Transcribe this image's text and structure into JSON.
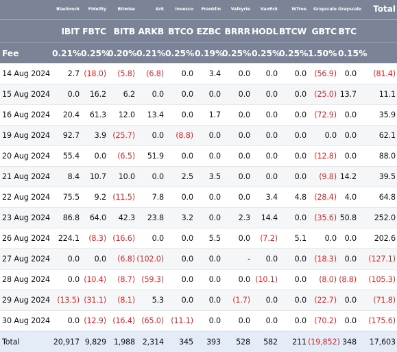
{
  "colors": {
    "header_bg": "#7b8497",
    "header_text": "#ffffff",
    "negative": "#d62a2a",
    "total_row_bg": "#e4edf7"
  },
  "table": {
    "total_label": "Total",
    "fee_label": "Fee",
    "issuers": [
      "Blackrock",
      "Fidelity",
      "Bitwise",
      "Ark",
      "Invesco",
      "Franklin",
      "Valkyrie",
      "VanEck",
      "WTree",
      "Grayscale",
      "Grayscale"
    ],
    "tickers": [
      "IBIT",
      "FBTC",
      "BITB",
      "ARKB",
      "BTCO",
      "EZBC",
      "BRRR",
      "HODL",
      "BTCW",
      "GBTC",
      "BTC"
    ],
    "fees": [
      "0.21%",
      "0.25%",
      "0.20%",
      "0.21%",
      "0.25%",
      "0.19%",
      "0.25%",
      "0.25%",
      "0.25%",
      "1.50%",
      "0.15%"
    ],
    "rows": [
      {
        "date": "14 Aug 2024",
        "values": [
          "2.7",
          "(18.0)",
          "(5.8)",
          "(6.8)",
          "0.0",
          "3.4",
          "0.0",
          "0.0",
          "0.0",
          "(56.9)",
          "0.0",
          "(81.4)"
        ]
      },
      {
        "date": "15 Aug 2024",
        "values": [
          "0.0",
          "16.2",
          "6.2",
          "0.0",
          "0.0",
          "0.0",
          "0.0",
          "0.0",
          "0.0",
          "(25.0)",
          "13.7",
          "11.1"
        ]
      },
      {
        "date": "16 Aug 2024",
        "values": [
          "20.4",
          "61.3",
          "12.0",
          "13.4",
          "0.0",
          "1.7",
          "0.0",
          "0.0",
          "0.0",
          "(72.9)",
          "0.0",
          "35.9"
        ]
      },
      {
        "date": "19 Aug 2024",
        "values": [
          "92.7",
          "3.9",
          "(25.7)",
          "0.0",
          "(8.8)",
          "0.0",
          "0.0",
          "0.0",
          "0.0",
          "0.0",
          "0.0",
          "62.1"
        ]
      },
      {
        "date": "20 Aug 2024",
        "values": [
          "55.4",
          "0.0",
          "(6.5)",
          "51.9",
          "0.0",
          "0.0",
          "0.0",
          "0.0",
          "0.0",
          "(12.8)",
          "0.0",
          "88.0"
        ]
      },
      {
        "date": "21 Aug 2024",
        "values": [
          "8.4",
          "10.7",
          "10.0",
          "0.0",
          "2.5",
          "3.5",
          "0.0",
          "0.0",
          "0.0",
          "(9.8)",
          "14.2",
          "39.5"
        ]
      },
      {
        "date": "22 Aug 2024",
        "values": [
          "75.5",
          "9.2",
          "(11.5)",
          "7.8",
          "0.0",
          "0.0",
          "0.0",
          "3.4",
          "4.8",
          "(28.4)",
          "4.0",
          "64.8"
        ]
      },
      {
        "date": "23 Aug 2024",
        "values": [
          "86.8",
          "64.0",
          "42.3",
          "23.8",
          "3.2",
          "0.0",
          "2.3",
          "14.4",
          "0.0",
          "(35.6)",
          "50.8",
          "252.0"
        ]
      },
      {
        "date": "26 Aug 2024",
        "values": [
          "224.1",
          "(8.3)",
          "(16.6)",
          "0.0",
          "0.0",
          "5.5",
          "0.0",
          "(7.2)",
          "5.1",
          "0.0",
          "0.0",
          "202.6"
        ]
      },
      {
        "date": "27 Aug 2024",
        "values": [
          "0.0",
          "0.0",
          "(6.8)",
          "(102.0)",
          "0.0",
          "0.0",
          "-",
          "0.0",
          "0.0",
          "(18.3)",
          "0.0",
          "(127.1)"
        ]
      },
      {
        "date": "28 Aug 2024",
        "values": [
          "0.0",
          "(10.4)",
          "(8.7)",
          "(59.3)",
          "0.0",
          "0.0",
          "0.0",
          "(10.1)",
          "0.0",
          "(8.0)",
          "(8.8)",
          "(105.3)"
        ]
      },
      {
        "date": "29 Aug 2024",
        "values": [
          "(13.5)",
          "(31.1)",
          "(8.1)",
          "5.3",
          "0.0",
          "0.0",
          "(1.7)",
          "0.0",
          "0.0",
          "(22.7)",
          "0.0",
          "(71.8)"
        ]
      },
      {
        "date": "30 Aug 2024",
        "values": [
          "0.0",
          "(12.9)",
          "(16.4)",
          "(65.0)",
          "(11.1)",
          "0.0",
          "0.0",
          "0.0",
          "0.0",
          "(70.2)",
          "0.0",
          "(175.6)"
        ]
      }
    ],
    "totals": [
      "20,917",
      "9,829",
      "1,988",
      "2,314",
      "345",
      "393",
      "528",
      "582",
      "211",
      "(19,852)",
      "348",
      "17,603"
    ]
  }
}
